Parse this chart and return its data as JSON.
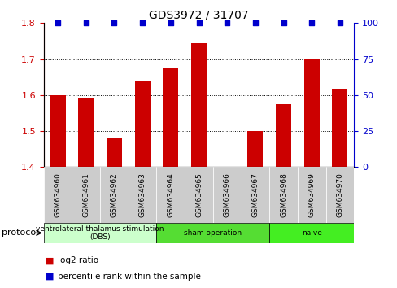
{
  "title": "GDS3972 / 31707",
  "samples": [
    "GSM634960",
    "GSM634961",
    "GSM634962",
    "GSM634963",
    "GSM634964",
    "GSM634965",
    "GSM634966",
    "GSM634967",
    "GSM634968",
    "GSM634969",
    "GSM634970"
  ],
  "log2_ratio": [
    1.6,
    1.59,
    1.48,
    1.64,
    1.675,
    1.745,
    1.4,
    1.5,
    1.575,
    1.7,
    1.615
  ],
  "percentile_rank": [
    100,
    100,
    100,
    100,
    100,
    100,
    100,
    100,
    100,
    100,
    100
  ],
  "bar_color": "#cc0000",
  "dot_color": "#0000cc",
  "ylim_left": [
    1.4,
    1.8
  ],
  "ylim_right": [
    0,
    100
  ],
  "yticks_left": [
    1.4,
    1.5,
    1.6,
    1.7,
    1.8
  ],
  "yticks_right": [
    0,
    25,
    50,
    75,
    100
  ],
  "grid_ticks": [
    1.5,
    1.6,
    1.7
  ],
  "protocols": [
    {
      "label": "ventrolateral thalamus stimulation\n(DBS)",
      "start": 0,
      "end": 3,
      "color": "#ccffcc"
    },
    {
      "label": "sham operation",
      "start": 4,
      "end": 7,
      "color": "#55dd33"
    },
    {
      "label": "naive",
      "start": 8,
      "end": 10,
      "color": "#44ee22"
    }
  ],
  "protocol_label": "protocol",
  "legend_bar_label": "log2 ratio",
  "legend_dot_label": "percentile rank within the sample",
  "bg_color": "#ffffff",
  "tick_bg_color": "#cccccc",
  "left_axis_color": "#cc0000",
  "right_axis_color": "#0000cc"
}
